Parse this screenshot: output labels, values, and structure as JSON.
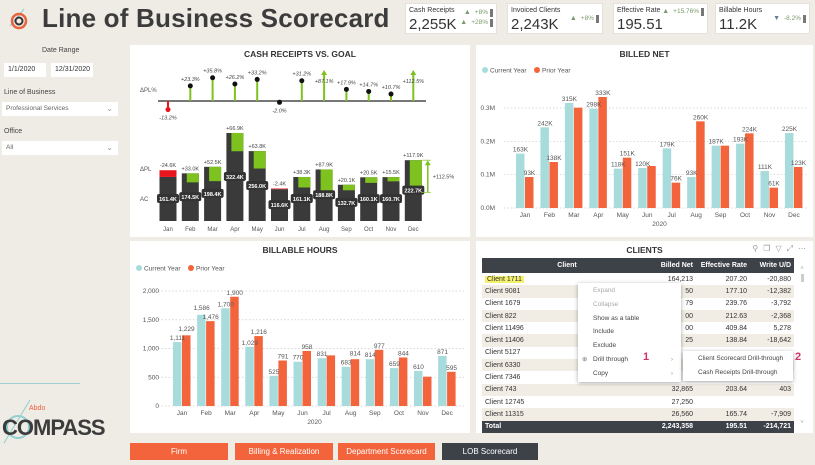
{
  "header": {
    "title": "Line of Business Scorecard"
  },
  "kpis": [
    {
      "label": "Cash Receipts",
      "value": "2,255K",
      "changes": [
        "+8%",
        "+28%"
      ],
      "direction": "up"
    },
    {
      "label": "Invoiced Clients",
      "value": "2,243K",
      "changes": [
        "+8%"
      ],
      "direction": "up"
    },
    {
      "label": "Effective Rate",
      "value": "195.51",
      "changes": [
        "+15.76%"
      ],
      "direction": "up"
    },
    {
      "label": "Billable Hours",
      "value": "11.2K",
      "changes": [
        "-8.2%"
      ],
      "direction": "down"
    }
  ],
  "filters": {
    "date_range_label": "Date Range",
    "start": "1/1/2020",
    "end": "12/31/2020",
    "lob_label": "Line of Business",
    "lob_value": "Professional Services",
    "office_label": "Office",
    "office_value": "All"
  },
  "logo": {
    "small": "Abdo",
    "big": "COMPASS"
  },
  "nav": {
    "buttons": [
      "Firm",
      "Billing & Realization",
      "Department Scorecard",
      "LOB Scorecard"
    ],
    "active": 3
  },
  "colors": {
    "current": "#a8dcdc",
    "prior": "#f4643c",
    "green": "#7dc21e",
    "dark": "#3a3a3a",
    "red": "#e8141e"
  },
  "chart_data": [
    {
      "type": "bar",
      "title": "CASH RECEIPTS VS. GOAL",
      "categories": [
        "Jan",
        "Feb",
        "Mar",
        "Apr",
        "May",
        "Jun",
        "Jul",
        "Aug",
        "Sep",
        "Oct",
        "Nov",
        "Dec"
      ],
      "row_labels": {
        "pct": "ΔPL%",
        "delta": "ΔPL",
        "ac": "AC"
      },
      "delta_pct": [
        -13.2,
        23.3,
        35.8,
        26.2,
        33.2,
        -2.0,
        31.2,
        87.1,
        17.9,
        14.7,
        10.7,
        112.5
      ],
      "delta_pct_labels": [
        "-13.2%",
        "+23.3%",
        "+35.8%",
        "+26.2%",
        "+33.2%",
        "-2.0%",
        "+31.2%",
        "+87.1%",
        "+17.9%",
        "+14.7%",
        "+10.7%",
        "+112.5%"
      ],
      "ac": [
        161.4,
        174.5,
        198.4,
        322.4,
        256.0,
        116.6,
        161.1,
        188.8,
        132.7,
        160.1,
        160.7,
        222.7
      ],
      "ac_labels": [
        "161.4K",
        "174.5K",
        "198.4K",
        "322.4K",
        "256.0K",
        "116.6K",
        "161.1K",
        "188.8K",
        "132.7K",
        "160.1K",
        "160.7K",
        "222.7K"
      ],
      "delta_pl": [
        -24.6,
        33.0,
        52.5,
        66.9,
        63.8,
        -2.4,
        38.3,
        87.9,
        20.1,
        20.5,
        15.5,
        117.9
      ],
      "delta_pl_labels": [
        "-24.6K",
        "+33.0K",
        "+52.5K",
        "+66.9K",
        "+63.8K",
        "-2.4K",
        "+38.3K",
        "+87.9K",
        "+20.1K",
        "+20.5K",
        "+15.5K",
        "+117.9K"
      ],
      "total_annotation": "+112.5%"
    },
    {
      "type": "bar",
      "title": "BILLED NET",
      "legend": [
        "Current Year",
        "Prior Year"
      ],
      "xlabel": "2020",
      "categories": [
        "Jan",
        "Feb",
        "Mar",
        "Apr",
        "May",
        "Jun",
        "Jul",
        "Aug",
        "Sep",
        "Oct",
        "Nov",
        "Dec"
      ],
      "yticks": [
        "0.0M",
        "0.1M",
        "0.2M",
        "0.3M"
      ],
      "ylim": [
        0,
        0.3
      ],
      "series": [
        {
          "name": "Current Year",
          "values": [
            163,
            242,
            315,
            298,
            118,
            120,
            179,
            93,
            187,
            193,
            111,
            225
          ],
          "labels": [
            "163K",
            "242K",
            "315K",
            "298K",
            "118K",
            "120K",
            "179K",
            "93K",
            "187K",
            "193K",
            "111K",
            "225K"
          ]
        },
        {
          "name": "Prior Year",
          "values": [
            93,
            138,
            301,
            333,
            151,
            126,
            76,
            260,
            187,
            224,
            61,
            123
          ],
          "labels": [
            "93K",
            "138K",
            null,
            "333K",
            "151K",
            null,
            "76K",
            "260K",
            null,
            "224K",
            "61K",
            "123K"
          ]
        }
      ]
    },
    {
      "type": "bar",
      "title": "BILLABLE HOURS",
      "legend": [
        "Current Year",
        "Prior Year"
      ],
      "xlabel": "2020",
      "categories": [
        "Jan",
        "Feb",
        "Mar",
        "Apr",
        "May",
        "Jun",
        "Jul",
        "Aug",
        "Sep",
        "Oct",
        "Nov",
        "Dec"
      ],
      "yticks": [
        "0",
        "500",
        "1,000",
        "1,500",
        "2,000"
      ],
      "ylim": [
        0,
        2000
      ],
      "series": [
        {
          "name": "Current Year",
          "values": [
            1111,
            1586,
            1700,
            1029,
            525,
            770,
            831,
            683,
            814,
            659,
            610,
            871
          ],
          "labels": [
            "1,111",
            "1,586",
            "1,700",
            "1,029",
            "525",
            "770",
            "831",
            "683",
            "814",
            "659",
            "610",
            "871"
          ]
        },
        {
          "name": "Prior Year",
          "values": [
            1229,
            1476,
            1900,
            1216,
            791,
            958,
            880,
            814,
            977,
            844,
            510,
            595
          ],
          "labels": [
            "1,229",
            "1,476",
            "1,900",
            "1,216",
            "791",
            "958",
            null,
            "814",
            "977",
            "844",
            null,
            "595"
          ]
        }
      ]
    }
  ],
  "clients": {
    "title": "CLIENTS",
    "columns": [
      "Client",
      "Billed Net",
      "Effective Rate",
      "Write U/D"
    ],
    "rows": [
      [
        "Client 1711",
        "164,213",
        "207.20",
        "-20,880"
      ],
      [
        "Client 9081",
        "50",
        "177.10",
        "-12,382"
      ],
      [
        "Client 1679",
        "79",
        "239.76",
        "-3,792"
      ],
      [
        "Client 822",
        "00",
        "212.63",
        "-2,368"
      ],
      [
        "Client 11496",
        "00",
        "409.84",
        "5,278"
      ],
      [
        "Client 11406",
        "25",
        "138.84",
        "-18,642"
      ],
      [
        "Client 5127",
        "",
        "",
        ""
      ],
      [
        "Client 6330",
        "",
        "",
        ""
      ],
      [
        "Client 7346",
        "",
        "",
        ""
      ],
      [
        "Client 743",
        "32,865",
        "203.64",
        "403"
      ],
      [
        "Client 12745",
        "27,250",
        "",
        ""
      ],
      [
        "Client 11315",
        "26,560",
        "165.74",
        "-7,909"
      ]
    ],
    "total": [
      "Total",
      "2,243,358",
      "195.51",
      "-214,721"
    ]
  },
  "context_menu": {
    "items": [
      "Expand",
      "Collapse",
      "Show as a table",
      "Include",
      "Exclude",
      "Drill through",
      "Copy"
    ],
    "submenu": [
      "Client Scorecard Drill-through",
      "Cash Receipts Drill-through"
    ],
    "markers": [
      "1",
      "2"
    ]
  }
}
